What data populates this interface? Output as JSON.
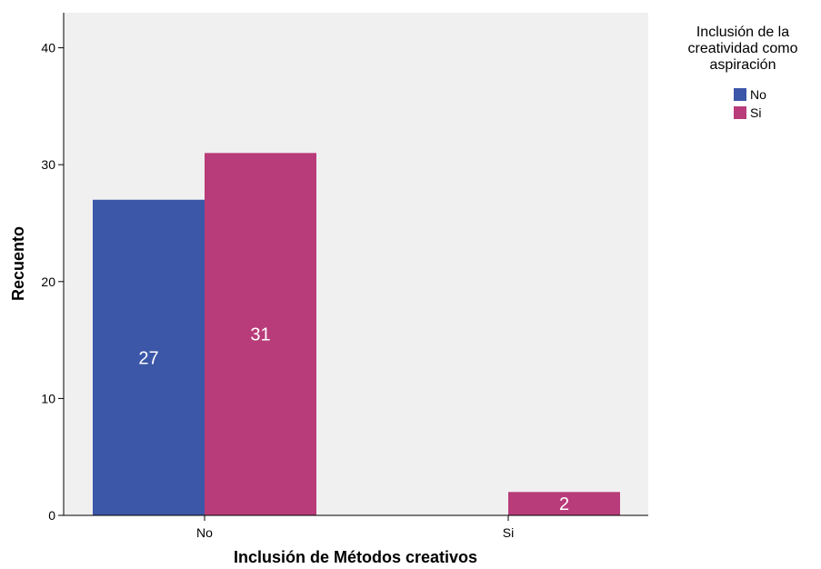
{
  "chart_data": {
    "type": "bar",
    "categories": [
      "No",
      "Si"
    ],
    "series": [
      {
        "name": "No",
        "values": [
          27,
          null
        ],
        "color": "#3c57a8"
      },
      {
        "name": "Si",
        "values": [
          31,
          2
        ],
        "color": "#b93c7a"
      }
    ],
    "data_labels": [
      {
        "series": "No",
        "category": "No",
        "text": "27"
      },
      {
        "series": "Si",
        "category": "No",
        "text": "31"
      },
      {
        "series": "Si",
        "category": "Si",
        "text": "2"
      }
    ],
    "xlabel": "Inclusión de Métodos creativos",
    "ylabel": "Recuento",
    "ylim": [
      0,
      43
    ],
    "yticks": [
      0,
      10,
      20,
      30,
      40
    ],
    "legend": {
      "title_lines": [
        "Inclusión de la",
        "creatividad como",
        "aspiración"
      ],
      "placement": "top-right"
    },
    "grid": false,
    "plot_background": "#f0f0f0"
  }
}
